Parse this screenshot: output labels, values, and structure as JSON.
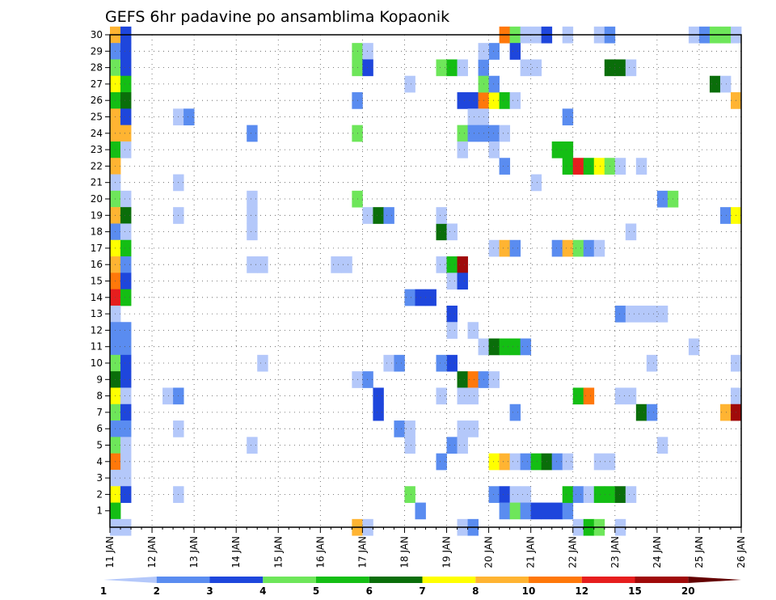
{
  "chart_data": {
    "type": "heatmap",
    "title": "GEFS 6hr padavine po ansamblima Kopaonik",
    "xlabel": "",
    "ylabel": "",
    "x_tick_labels": [
      "11 JAN",
      "12 JAN",
      "13 JAN",
      "14 JAN",
      "15 JAN",
      "16 JAN",
      "17 JAN",
      "18 JAN",
      "19 JAN",
      "20 JAN",
      "21 JAN",
      "22 JAN",
      "23 JAN",
      "24 JAN",
      "25 JAN",
      "26 JAN"
    ],
    "y_tick_labels": [
      "1",
      "2",
      "3",
      "4",
      "5",
      "6",
      "7",
      "8",
      "9",
      "10",
      "11",
      "12",
      "13",
      "14",
      "15",
      "16",
      "17",
      "18",
      "19",
      "20",
      "21",
      "22",
      "23",
      "24",
      "25",
      "26",
      "27",
      "28",
      "29",
      "30"
    ],
    "x_range_days": [
      11,
      26
    ],
    "y_range": [
      0,
      30
    ],
    "step_hours": 6,
    "grid": "dotted",
    "legend_placement": "bottom",
    "legend_labels": [
      "1",
      "2",
      "3",
      "4",
      "5",
      "6",
      "7",
      "8",
      "10",
      "12",
      "15",
      "20"
    ],
    "legend_colors": [
      "#b4c8fa",
      "#5a8cf0",
      "#1e46dc",
      "#6ee65a",
      "#14be14",
      "#0a6e0a",
      "#ffff00",
      "#ffb432",
      "#ff780a",
      "#e61e1e",
      "#a00a0a",
      "#640000"
    ],
    "cells_columns": [
      "day",
      "member",
      "class"
    ],
    "cells": [
      [
        11.0,
        30,
        7
      ],
      [
        11.25,
        30,
        2
      ],
      [
        11.0,
        29,
        1
      ],
      [
        11.25,
        29,
        2
      ],
      [
        11.0,
        28,
        3
      ],
      [
        11.25,
        28,
        2
      ],
      [
        11.0,
        27,
        6
      ],
      [
        11.25,
        27,
        4
      ],
      [
        11.0,
        26,
        4
      ],
      [
        11.25,
        26,
        5
      ],
      [
        11.0,
        25,
        7
      ],
      [
        11.25,
        25,
        2
      ],
      [
        11.0,
        24,
        7
      ],
      [
        11.25,
        24,
        7
      ],
      [
        11.0,
        23,
        4
      ],
      [
        11.25,
        23,
        0
      ],
      [
        11.0,
        22,
        7
      ],
      [
        11.0,
        21,
        0
      ],
      [
        11.0,
        20,
        3
      ],
      [
        11.25,
        20,
        0
      ],
      [
        11.0,
        19,
        7
      ],
      [
        11.25,
        19,
        5
      ],
      [
        11.0,
        18,
        1
      ],
      [
        11.25,
        18,
        0
      ],
      [
        11.0,
        17,
        6
      ],
      [
        11.25,
        17,
        4
      ],
      [
        11.0,
        16,
        7
      ],
      [
        11.25,
        16,
        1
      ],
      [
        11.0,
        15,
        8
      ],
      [
        11.25,
        15,
        2
      ],
      [
        11.0,
        14,
        9
      ],
      [
        11.25,
        14,
        4
      ],
      [
        11.0,
        13,
        0
      ],
      [
        11.0,
        12,
        1
      ],
      [
        11.25,
        12,
        1
      ],
      [
        11.0,
        11,
        1
      ],
      [
        11.25,
        11,
        1
      ],
      [
        11.0,
        10,
        3
      ],
      [
        11.25,
        10,
        2
      ],
      [
        11.0,
        9,
        5
      ],
      [
        11.25,
        9,
        2
      ],
      [
        11.0,
        8,
        6
      ],
      [
        11.25,
        8,
        0
      ],
      [
        11.0,
        7,
        3
      ],
      [
        11.25,
        7,
        2
      ],
      [
        11.0,
        6,
        1
      ],
      [
        11.25,
        6,
        1
      ],
      [
        11.0,
        5,
        3
      ],
      [
        11.25,
        5,
        0
      ],
      [
        11.0,
        4,
        8
      ],
      [
        11.25,
        4,
        0
      ],
      [
        11.0,
        3,
        0
      ],
      [
        11.25,
        3,
        0
      ],
      [
        11.0,
        2,
        6
      ],
      [
        11.25,
        2,
        2
      ],
      [
        11.0,
        1,
        4
      ],
      [
        11.0,
        0,
        0
      ],
      [
        11.25,
        0,
        0
      ],
      [
        12.5,
        25,
        0
      ],
      [
        12.75,
        25,
        1
      ],
      [
        12.5,
        21,
        0
      ],
      [
        12.5,
        19,
        0
      ],
      [
        12.25,
        8,
        0
      ],
      [
        12.5,
        8,
        1
      ],
      [
        12.5,
        6,
        0
      ],
      [
        12.5,
        2,
        0
      ],
      [
        14.25,
        24,
        1
      ],
      [
        14.25,
        20,
        0
      ],
      [
        14.25,
        19,
        0
      ],
      [
        14.25,
        18,
        0
      ],
      [
        14.25,
        16,
        0
      ],
      [
        14.5,
        16,
        0
      ],
      [
        14.5,
        10,
        0
      ],
      [
        14.25,
        5,
        0
      ],
      [
        16.25,
        16,
        0
      ],
      [
        16.5,
        16,
        0
      ],
      [
        16.75,
        29,
        3
      ],
      [
        17.0,
        29,
        0
      ],
      [
        16.75,
        28,
        3
      ],
      [
        17.0,
        28,
        2
      ],
      [
        16.75,
        26,
        1
      ],
      [
        16.75,
        24,
        3
      ],
      [
        16.75,
        20,
        3
      ],
      [
        17.0,
        19,
        0
      ],
      [
        17.25,
        19,
        5
      ],
      [
        17.5,
        19,
        1
      ],
      [
        16.75,
        9,
        0
      ],
      [
        17.0,
        9,
        1
      ],
      [
        17.25,
        8,
        2
      ],
      [
        17.25,
        7,
        2
      ],
      [
        16.75,
        0,
        7
      ],
      [
        17.0,
        0,
        0
      ],
      [
        17.5,
        10,
        0
      ],
      [
        17.75,
        10,
        1
      ],
      [
        18.0,
        27,
        0
      ],
      [
        18.0,
        14,
        1
      ],
      [
        18.25,
        14,
        2
      ],
      [
        18.5,
        14,
        2
      ],
      [
        17.75,
        6,
        1
      ],
      [
        18.0,
        6,
        0
      ],
      [
        18.0,
        5,
        0
      ],
      [
        18.0,
        2,
        3
      ],
      [
        18.25,
        1,
        1
      ],
      [
        18.75,
        28,
        3
      ],
      [
        19.0,
        28,
        4
      ],
      [
        19.25,
        28,
        0
      ],
      [
        18.75,
        18,
        5
      ],
      [
        19.0,
        18,
        0
      ],
      [
        18.75,
        19,
        0
      ],
      [
        18.75,
        16,
        0
      ],
      [
        19.0,
        16,
        4
      ],
      [
        19.25,
        16,
        10
      ],
      [
        19.0,
        15,
        0
      ],
      [
        19.25,
        15,
        2
      ],
      [
        19.0,
        13,
        2
      ],
      [
        19.0,
        12,
        0
      ],
      [
        19.0,
        10,
        2
      ],
      [
        18.75,
        10,
        1
      ],
      [
        19.25,
        9,
        5
      ],
      [
        19.5,
        9,
        8
      ],
      [
        19.75,
        9,
        1
      ],
      [
        20.0,
        9,
        0
      ],
      [
        18.75,
        8,
        0
      ],
      [
        19.25,
        8,
        0
      ],
      [
        19.5,
        8,
        0
      ],
      [
        19.25,
        6,
        0
      ],
      [
        19.5,
        6,
        0
      ],
      [
        19.0,
        5,
        1
      ],
      [
        19.25,
        5,
        0
      ],
      [
        18.75,
        4,
        1
      ],
      [
        19.25,
        0,
        0
      ],
      [
        19.5,
        0,
        1
      ],
      [
        19.5,
        12,
        0
      ],
      [
        19.25,
        26,
        2
      ],
      [
        19.5,
        26,
        2
      ],
      [
        19.75,
        26,
        8
      ],
      [
        20.0,
        26,
        6
      ],
      [
        20.25,
        26,
        4
      ],
      [
        20.5,
        26,
        0
      ],
      [
        19.5,
        25,
        0
      ],
      [
        19.75,
        25,
        0
      ],
      [
        19.25,
        24,
        3
      ],
      [
        19.5,
        24,
        1
      ],
      [
        19.75,
        24,
        1
      ],
      [
        20.0,
        24,
        1
      ],
      [
        20.25,
        24,
        0
      ],
      [
        19.25,
        23,
        0
      ],
      [
        20.0,
        23,
        0
      ],
      [
        19.75,
        28,
        1
      ],
      [
        20.0,
        29,
        1
      ],
      [
        19.75,
        29,
        0
      ],
      [
        19.75,
        27,
        3
      ],
      [
        20.0,
        27,
        1
      ],
      [
        20.25,
        30,
        8
      ],
      [
        20.5,
        30,
        3
      ],
      [
        20.75,
        30,
        0
      ],
      [
        21.0,
        30,
        0
      ],
      [
        21.25,
        30,
        2
      ],
      [
        20.5,
        29,
        2
      ],
      [
        20.75,
        28,
        0
      ],
      [
        21.0,
        28,
        0
      ],
      [
        20.0,
        17,
        0
      ],
      [
        20.25,
        17,
        7
      ],
      [
        20.5,
        17,
        1
      ],
      [
        19.75,
        11,
        0
      ],
      [
        20.0,
        11,
        5
      ],
      [
        20.25,
        11,
        4
      ],
      [
        20.5,
        11,
        4
      ],
      [
        20.75,
        11,
        1
      ],
      [
        20.25,
        22,
        1
      ],
      [
        20.0,
        4,
        6
      ],
      [
        20.25,
        4,
        7
      ],
      [
        20.5,
        4,
        0
      ],
      [
        20.75,
        4,
        1
      ],
      [
        21.0,
        4,
        4
      ],
      [
        21.25,
        4,
        5
      ],
      [
        21.5,
        4,
        1
      ],
      [
        21.75,
        4,
        0
      ],
      [
        20.0,
        2,
        1
      ],
      [
        20.25,
        2,
        2
      ],
      [
        20.5,
        2,
        0
      ],
      [
        20.75,
        2,
        0
      ],
      [
        20.25,
        1,
        1
      ],
      [
        20.5,
        1,
        3
      ],
      [
        20.75,
        1,
        1
      ],
      [
        21.0,
        1,
        2
      ],
      [
        21.25,
        1,
        2
      ],
      [
        21.5,
        1,
        2
      ],
      [
        21.75,
        1,
        1
      ],
      [
        20.5,
        7,
        1
      ],
      [
        21.0,
        21,
        0
      ],
      [
        21.75,
        25,
        1
      ],
      [
        21.5,
        23,
        4
      ],
      [
        21.75,
        23,
        4
      ],
      [
        21.75,
        22,
        4
      ],
      [
        22.0,
        22,
        9
      ],
      [
        22.25,
        22,
        4
      ],
      [
        22.5,
        22,
        6
      ],
      [
        22.75,
        22,
        3
      ],
      [
        23.0,
        22,
        0
      ],
      [
        23.5,
        22,
        0
      ],
      [
        21.5,
        17,
        1
      ],
      [
        21.75,
        17,
        7
      ],
      [
        22.0,
        17,
        3
      ],
      [
        22.25,
        17,
        1
      ],
      [
        22.5,
        17,
        0
      ],
      [
        22.0,
        8,
        4
      ],
      [
        22.25,
        8,
        8
      ],
      [
        22.5,
        4,
        0
      ],
      [
        22.75,
        4,
        0
      ],
      [
        21.75,
        2,
        4
      ],
      [
        22.0,
        2,
        1
      ],
      [
        22.25,
        2,
        0
      ],
      [
        22.5,
        2,
        4
      ],
      [
        22.75,
        2,
        4
      ],
      [
        23.0,
        2,
        5
      ],
      [
        23.25,
        2,
        0
      ],
      [
        22.0,
        0,
        0
      ],
      [
        22.25,
        0,
        4
      ],
      [
        22.5,
        0,
        3
      ],
      [
        23.0,
        0,
        0
      ],
      [
        21.75,
        30,
        0
      ],
      [
        22.5,
        30,
        0
      ],
      [
        22.75,
        30,
        1
      ],
      [
        22.75,
        28,
        5
      ],
      [
        23.0,
        28,
        5
      ],
      [
        23.25,
        28,
        0
      ],
      [
        23.25,
        18,
        0
      ],
      [
        23.0,
        13,
        1
      ],
      [
        23.25,
        13,
        0
      ],
      [
        23.5,
        13,
        0
      ],
      [
        23.75,
        13,
        0
      ],
      [
        24.0,
        13,
        0
      ],
      [
        23.0,
        8,
        0
      ],
      [
        23.25,
        8,
        0
      ],
      [
        23.75,
        10,
        0
      ],
      [
        23.5,
        7,
        5
      ],
      [
        23.75,
        7,
        1
      ],
      [
        24.0,
        5,
        0
      ],
      [
        24.0,
        20,
        1
      ],
      [
        24.25,
        20,
        3
      ],
      [
        24.75,
        30,
        0
      ],
      [
        25.0,
        30,
        1
      ],
      [
        25.25,
        30,
        3
      ],
      [
        25.5,
        30,
        3
      ],
      [
        25.75,
        30,
        0
      ],
      [
        25.25,
        27,
        5
      ],
      [
        25.5,
        27,
        0
      ],
      [
        25.75,
        26,
        7
      ],
      [
        24.75,
        11,
        0
      ],
      [
        25.5,
        19,
        1
      ],
      [
        25.75,
        19,
        6
      ],
      [
        25.75,
        10,
        0
      ],
      [
        25.75,
        8,
        0
      ],
      [
        25.5,
        7,
        7
      ],
      [
        25.75,
        7,
        10
      ]
    ]
  }
}
